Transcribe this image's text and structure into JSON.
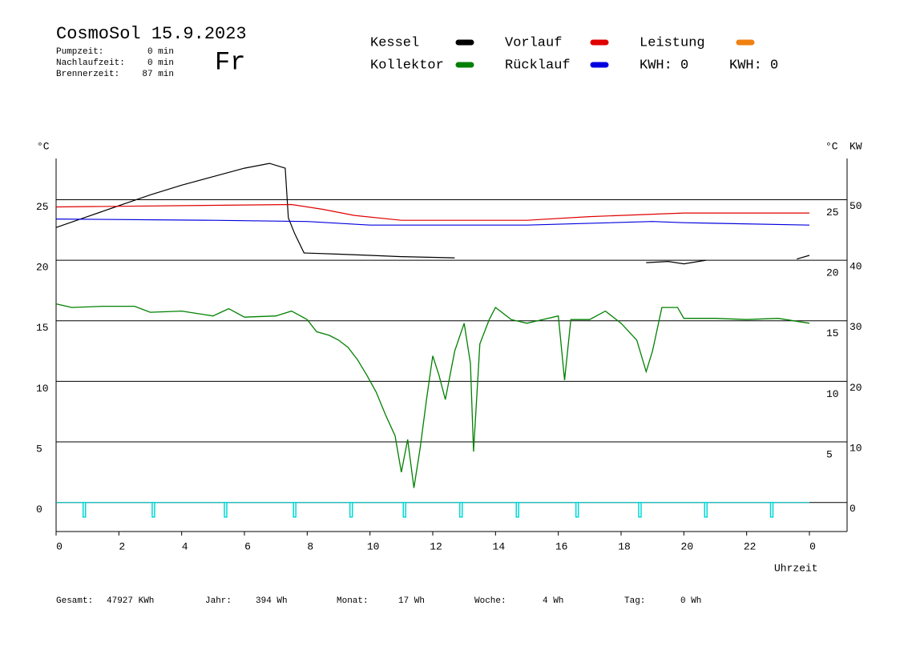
{
  "header": {
    "title": "CosmoSol 15.9.2023",
    "day": "Fr",
    "info": [
      {
        "label": "Pumpzeit:",
        "value": "0 min"
      },
      {
        "label": "Nachlaufzeit:",
        "value": "0 min"
      },
      {
        "label": "Brennerzeit:",
        "value": "87 min"
      }
    ],
    "kwh_labels": [
      {
        "text": "KWH: 0",
        "color": "#e08a1e"
      },
      {
        "text": "KWH: 0",
        "color": "#8a2a8a"
      }
    ]
  },
  "chart_data": {
    "type": "line",
    "y_label": "°C",
    "y2_label": "°C",
    "y3_label": "KW",
    "x_label": "Uhrzeit",
    "xlim": [
      0,
      25.2
    ],
    "xticks": [
      0,
      2,
      4,
      6,
      8,
      10,
      12,
      14,
      16,
      18,
      20,
      22,
      {
        "value": 24,
        "label": "0"
      }
    ],
    "ylim": [
      -2.4,
      28.4
    ],
    "yticks": [
      0,
      5,
      10,
      15,
      20,
      25
    ],
    "y2ticks": [
      5,
      10,
      15,
      20,
      25
    ],
    "y3lim": [
      -4.8,
      56.8
    ],
    "y3ticks": [
      0,
      10,
      20,
      30,
      40,
      50
    ],
    "y3color": "#e08a1e",
    "grid": true,
    "series": [
      {
        "name": "Kessel",
        "color": "#000000",
        "x": [
          0,
          1,
          2,
          3,
          4,
          5,
          6,
          6.8,
          7.3,
          7.4,
          7.6,
          7.9,
          9,
          10,
          11,
          12.7,
          12.8,
          18.8,
          19.5,
          20,
          20.7,
          20.8,
          23.6,
          24
        ],
        "values": [
          22.7,
          23.6,
          24.5,
          25.4,
          26.2,
          26.9,
          27.6,
          28.0,
          27.6,
          23.5,
          22.2,
          20.6,
          20.5,
          20.4,
          20.3,
          20.2,
          null,
          19.8,
          19.9,
          19.7,
          20.0,
          null,
          20.1,
          20.4
        ]
      },
      {
        "name": "Kollektor",
        "color": "#008000",
        "x": [
          0,
          0.5,
          1.5,
          2.5,
          3,
          4,
          5,
          5.5,
          6,
          7,
          7.5,
          8,
          8.3,
          8.7,
          9,
          9.3,
          9.6,
          9.9,
          10.2,
          10.5,
          10.8,
          11,
          11.2,
          11.4,
          11.6,
          11.8,
          12,
          12.2,
          12.4,
          12.7,
          13,
          13.2,
          13.3,
          13.5,
          13.8,
          14,
          14.5,
          15,
          15.5,
          16,
          16.2,
          16.4,
          17,
          17.5,
          18,
          18.5,
          18.8,
          19,
          19.3,
          19.8,
          20,
          21,
          22,
          23,
          24
        ],
        "values": [
          16.4,
          16.1,
          16.2,
          16.2,
          15.7,
          15.8,
          15.4,
          16.0,
          15.3,
          15.4,
          15.8,
          15.1,
          14.1,
          13.8,
          13.4,
          12.8,
          11.8,
          10.5,
          9.1,
          7.2,
          5.5,
          2.5,
          5.2,
          1.2,
          4.5,
          8.5,
          12.1,
          10.5,
          8.5,
          12.5,
          14.8,
          11.5,
          4.2,
          13.1,
          15.1,
          16.1,
          15.1,
          14.8,
          15.1,
          15.4,
          10.1,
          15.1,
          15.1,
          15.8,
          14.8,
          13.4,
          10.8,
          12.5,
          16.1,
          16.1,
          15.2,
          15.2,
          15.1,
          15.2,
          14.8
        ]
      },
      {
        "name": "Vorlauf",
        "color": "#e00000",
        "x": [
          0,
          7.5,
          8.5,
          9.5,
          11,
          15,
          17,
          20,
          24
        ],
        "values": [
          24.4,
          24.6,
          24.2,
          23.7,
          23.3,
          23.3,
          23.6,
          23.9,
          23.9
        ]
      },
      {
        "name": "Rücklauf",
        "color": "#0000e0",
        "x": [
          0,
          5,
          8,
          10,
          15,
          19,
          20,
          24
        ],
        "values": [
          23.4,
          23.3,
          23.2,
          22.9,
          22.9,
          23.2,
          23.1,
          22.9
        ]
      },
      {
        "name": "Leistung",
        "color": "#f08010",
        "x": [],
        "values": []
      }
    ],
    "pulses": {
      "color": "#00d8d8",
      "low": -1.2,
      "x": [
        0.9,
        3.1,
        5.4,
        7.6,
        9.4,
        11.1,
        12.9,
        14.7,
        16.6,
        18.6,
        20.7,
        22.8
      ]
    }
  },
  "footer": [
    {
      "label": "Gesamt:",
      "value": "47927 KWh"
    },
    {
      "label": "Jahr:",
      "value": "394 Wh"
    },
    {
      "label": "Monat:",
      "value": "17 Wh"
    },
    {
      "label": "Woche:",
      "value": "4 Wh"
    },
    {
      "label": "Tag:",
      "value": "0 Wh"
    }
  ]
}
